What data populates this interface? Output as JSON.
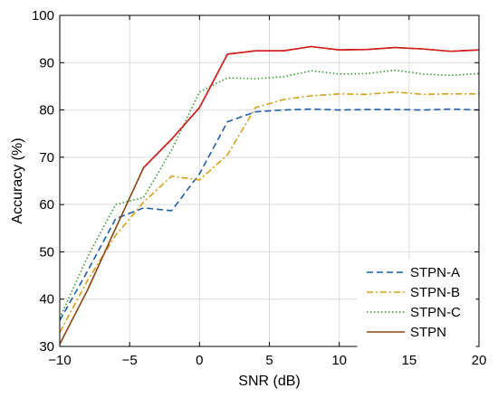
{
  "chart_data": {
    "type": "line",
    "title": "",
    "xlabel": "SNR (dB)",
    "ylabel": "Accuracy (%)",
    "xlim": [
      -10,
      20
    ],
    "ylim": [
      30,
      100
    ],
    "xticks": [
      -10,
      -5,
      0,
      5,
      10,
      15,
      20
    ],
    "yticks": [
      30,
      40,
      50,
      60,
      70,
      80,
      90,
      100
    ],
    "xtick_labels": [
      "−10",
      "−5",
      "0",
      "5",
      "10",
      "15",
      "20"
    ],
    "ytick_labels": [
      "30",
      "40",
      "50",
      "60",
      "70",
      "80",
      "90",
      "100"
    ],
    "grid": true,
    "legend_position": "bottom-right",
    "x": [
      -10,
      -8,
      -6,
      -4,
      -2,
      0,
      2,
      4,
      6,
      8,
      10,
      12,
      14,
      16,
      18,
      20
    ],
    "series": [
      {
        "name": "STPN-A",
        "color": "#1f5fa8",
        "dash": "dashed",
        "values": [
          35.5,
          46,
          57,
          59.3,
          58.7,
          66.5,
          77.5,
          79.6,
          80.0,
          80.2,
          80.0,
          80.1,
          80.1,
          80.0,
          80.2,
          80.0
        ]
      },
      {
        "name": "STPN-B",
        "color": "#d4a017",
        "dash": "dashdot",
        "values": [
          33,
          44,
          53.5,
          60.5,
          66,
          65.2,
          70.5,
          80.5,
          82.2,
          83.0,
          83.4,
          83.3,
          83.8,
          83.3,
          83.4,
          83.4
        ]
      },
      {
        "name": "STPN-C",
        "color": "#2e9e2e",
        "dash": "dotted",
        "values": [
          36,
          49,
          60,
          61.5,
          71.5,
          83.8,
          86.8,
          86.6,
          87.0,
          88.3,
          87.6,
          87.7,
          88.4,
          87.6,
          87.3,
          87.7
        ]
      },
      {
        "name": "STPN",
        "color": "#8b4513",
        "dash": "solid",
        "values": [
          30.5,
          42,
          55,
          67.8,
          73.8,
          80.5,
          91.8,
          92.5,
          92.5,
          93.4,
          92.7,
          92.8,
          93.2,
          92.9,
          92.4,
          92.7
        ]
      },
      {
        "name": "",
        "color": "#d42020",
        "dash": "solid",
        "values": [
          null,
          null,
          null,
          67.8,
          73.8,
          80.5,
          91.8,
          92.5,
          92.5,
          93.4,
          92.7,
          92.8,
          93.2,
          92.9,
          92.4,
          92.7
        ]
      }
    ]
  }
}
